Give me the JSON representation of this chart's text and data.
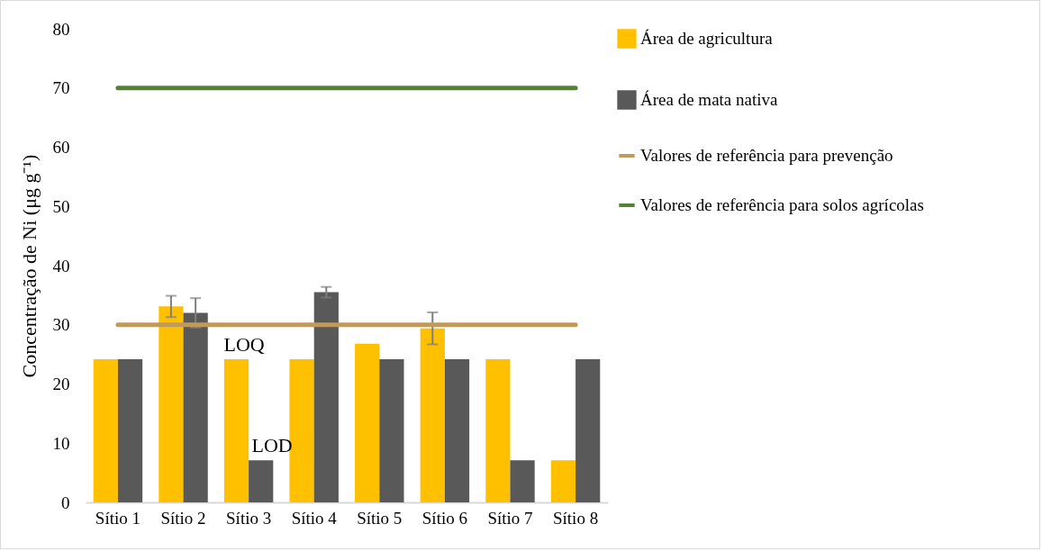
{
  "chart_data": {
    "type": "bar",
    "ylabel": "Concentração de Ni  (μg g⁻¹)",
    "categories": [
      "Sítio 1",
      "Sítio 2",
      "Sítio 3",
      "Sítio 4",
      "Sítio 5",
      "Sítio 6",
      "Sítio 7",
      "Sítio 8"
    ],
    "series": [
      {
        "name": "Área de agricultura",
        "color": "#ffc000",
        "values": [
          24.2,
          33.1,
          24.2,
          24.2,
          26.8,
          29.4,
          24.2,
          7.1
        ],
        "errors": [
          null,
          1.8,
          null,
          null,
          null,
          2.7,
          null,
          null
        ]
      },
      {
        "name": "Área de mata nativa",
        "color": "#595959",
        "values": [
          24.2,
          32.0,
          7.1,
          35.5,
          24.2,
          24.2,
          7.1,
          24.2
        ],
        "errors": [
          null,
          2.5,
          null,
          0.9,
          null,
          null,
          null,
          null
        ]
      },
      {
        "name": "Valores de referência para prevenção",
        "type": "line",
        "color": "#c09a5b",
        "values": [
          30,
          30,
          30,
          30,
          30,
          30,
          30,
          30
        ]
      },
      {
        "name": "Valores de referência para solos agrícolas",
        "type": "line",
        "color": "#548235",
        "values": [
          70,
          70,
          70,
          70,
          70,
          70,
          70,
          70
        ]
      }
    ],
    "ylim": [
      0,
      80
    ],
    "yticks": [
      0,
      10,
      20,
      30,
      40,
      50,
      60,
      70,
      80
    ],
    "grid": false,
    "legend": "right",
    "annotations": [
      {
        "text": "LOQ",
        "x": "Sítio 3",
        "y": 24.2
      },
      {
        "text": "LOD",
        "x": "Sítio 3",
        "y": 7.1
      }
    ]
  }
}
